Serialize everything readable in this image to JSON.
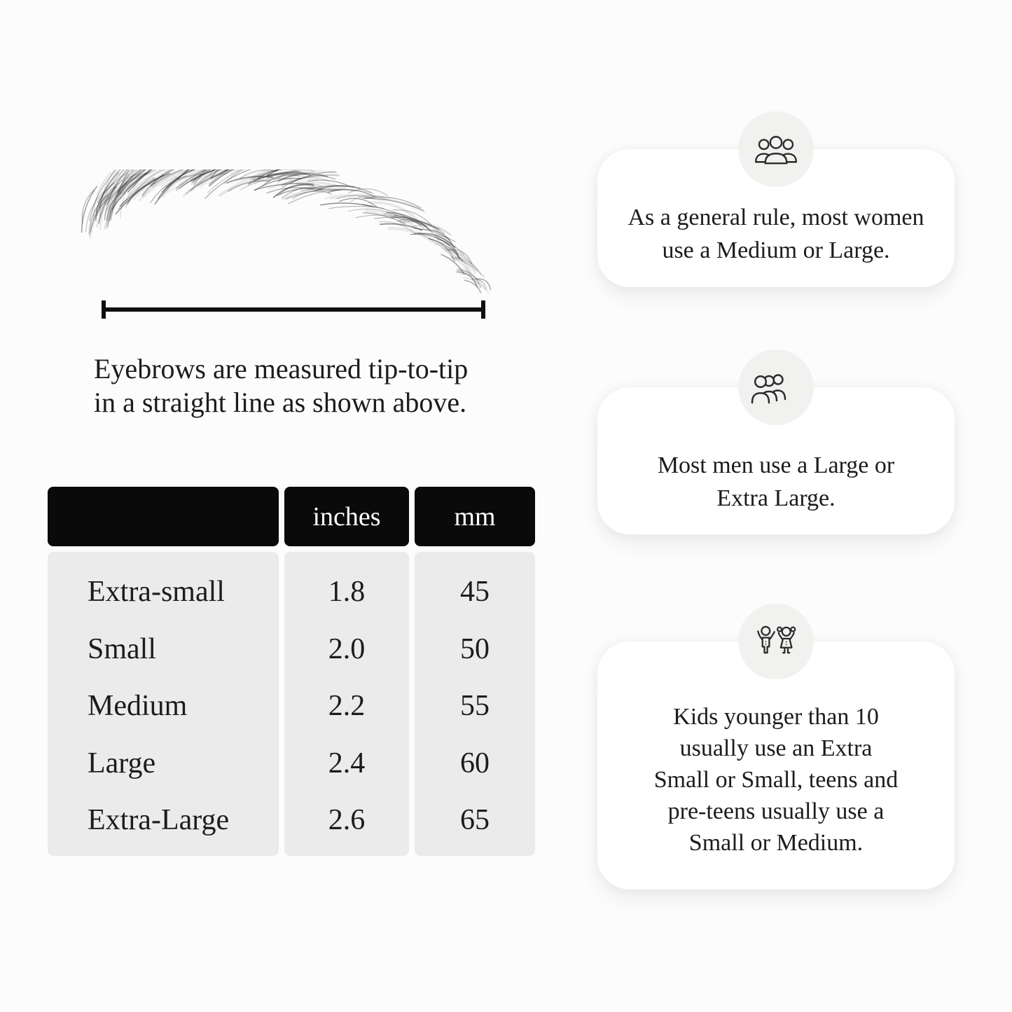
{
  "measurement": {
    "caption_lines": [
      "Eyebrows are measured tip-to-tip",
      "in a straight line as shown above."
    ]
  },
  "size_table": {
    "headers": {
      "size": "",
      "inches": "inches",
      "mm": "mm"
    },
    "rows": [
      {
        "label": "Extra-small",
        "inches": "1.8",
        "mm": "45"
      },
      {
        "label": "Small",
        "inches": "2.0",
        "mm": "50"
      },
      {
        "label": "Medium",
        "inches": "2.2",
        "mm": "55"
      },
      {
        "label": "Large",
        "inches": "2.4",
        "mm": "60"
      },
      {
        "label": "Extra-Large",
        "inches": "2.6",
        "mm": "65"
      }
    ]
  },
  "cards": [
    {
      "icon": "group-of-women-icon",
      "lines": [
        "As a general rule, most women",
        "use a Medium or Large."
      ]
    },
    {
      "icon": "group-of-men-icon",
      "lines": [
        "Most men use a Large or",
        "Extra Large."
      ]
    },
    {
      "icon": "kids-icon",
      "lines": [
        "Kids younger than 10",
        "usually use an Extra",
        "Small or Small, teens and",
        "pre-teens usually use a",
        "Small or Medium."
      ]
    }
  ],
  "colors": {
    "page_bg": "#fcfcfc",
    "header_bg": "#0a0a0a",
    "header_text": "#ffffff",
    "table_body_bg": "#ebebeb",
    "text": "#1c1c1c",
    "card_bg": "#ffffff",
    "icon_circle_bg": "#f1f1ef",
    "measure_line": "#0f0f0f"
  }
}
